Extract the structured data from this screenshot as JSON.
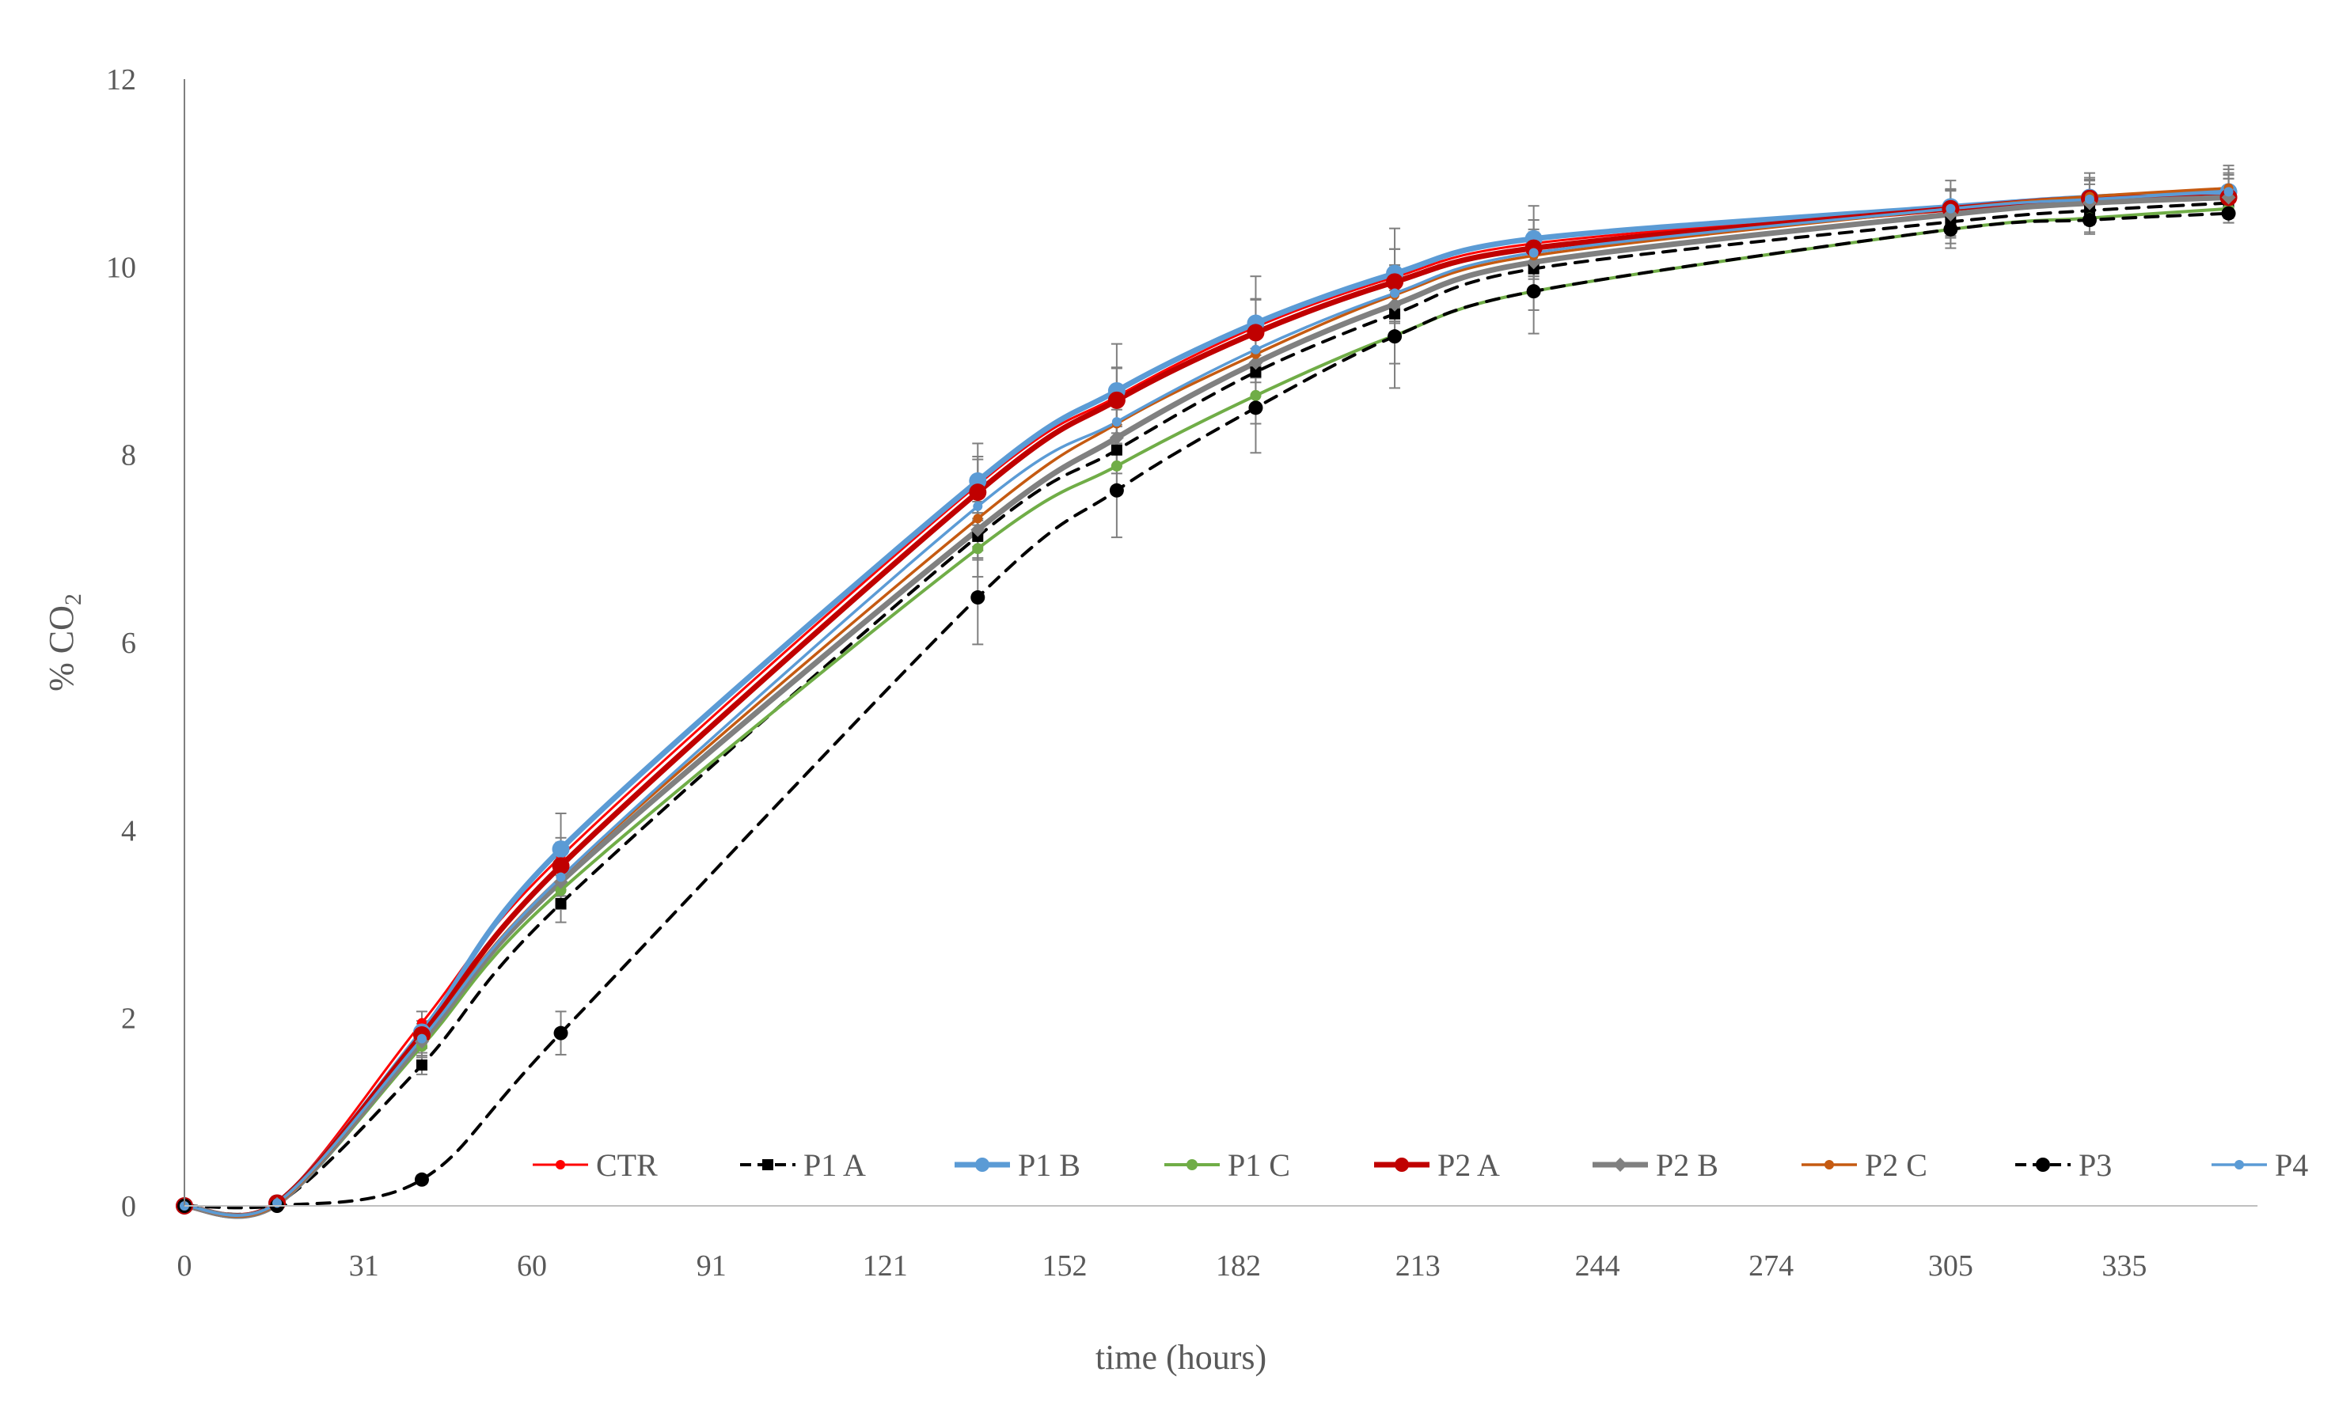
{
  "chart_data": {
    "type": "line",
    "title": "",
    "xlabel": "time (hours)",
    "ylabel_main": "% CO",
    "ylabel_sub": "2",
    "ylim": [
      0,
      12
    ],
    "yticks": [
      0,
      2,
      4,
      6,
      8,
      10,
      12
    ],
    "xlim": [
      0,
      358
    ],
    "xticks": [
      0,
      31,
      60,
      91,
      121,
      152,
      182,
      213,
      244,
      274,
      305,
      335
    ],
    "x": [
      0,
      16,
      41,
      65,
      137,
      161,
      185,
      209,
      233,
      305,
      329,
      353
    ],
    "grid": false,
    "legend_position": "bottom-right",
    "series": [
      {
        "name": "CTR",
        "color": "#ff0000",
        "dash": "solid",
        "width": 3,
        "marker": "circle",
        "marker_r": 6,
        "values": [
          0,
          0.04,
          1.95,
          3.72,
          7.68,
          8.62,
          9.36,
          9.89,
          10.25,
          10.63,
          10.72,
          10.78
        ],
        "err": [
          0,
          0,
          0.12,
          0.2,
          0.3,
          0.3,
          0.3,
          0.3,
          0.25,
          0.2,
          0.2,
          0.2
        ]
      },
      {
        "name": "P1 A",
        "color": "#000000",
        "dash": "dashed",
        "width": 4,
        "marker": "square",
        "marker_r": 7,
        "values": [
          0,
          0.02,
          1.5,
          3.22,
          7.13,
          8.05,
          8.88,
          9.5,
          9.98,
          10.48,
          10.6,
          10.68
        ],
        "err": [
          0,
          0,
          0.1,
          0.2,
          0.25,
          0.25,
          0.25,
          0.25,
          0.2,
          0.15,
          0.15,
          0.15
        ]
      },
      {
        "name": "P1 B",
        "color": "#5b9bd5",
        "dash": "solid",
        "width": 7,
        "marker": "circle",
        "marker_r": 11,
        "values": [
          0,
          0.03,
          1.85,
          3.8,
          7.72,
          8.68,
          9.4,
          9.93,
          10.3,
          10.64,
          10.74,
          10.8
        ],
        "err": [
          0,
          0,
          0.12,
          0.38,
          0.4,
          0.5,
          0.5,
          0.48,
          0.35,
          0.28,
          0.26,
          0.28
        ]
      },
      {
        "name": "P1 C",
        "color": "#70ad47",
        "dash": "solid",
        "width": 4,
        "marker": "circle",
        "marker_r": 7,
        "values": [
          0,
          0.01,
          1.7,
          3.36,
          7.0,
          7.88,
          8.63,
          9.27,
          9.74,
          10.4,
          10.52,
          10.62
        ],
        "err": [
          0,
          0,
          0.12,
          0.2,
          0.3,
          0.3,
          0.3,
          0.3,
          0.2,
          0.15,
          0.15,
          0.15
        ]
      },
      {
        "name": "P2 A",
        "color": "#c00000",
        "dash": "solid",
        "width": 7,
        "marker": "circle",
        "marker_r": 11,
        "values": [
          0,
          0.03,
          1.82,
          3.62,
          7.6,
          8.58,
          9.3,
          9.84,
          10.2,
          10.62,
          10.73,
          10.74
        ],
        "err": [
          0,
          0,
          0.12,
          0.25,
          0.35,
          0.35,
          0.35,
          0.35,
          0.3,
          0.2,
          0.2,
          0.2
        ]
      },
      {
        "name": "P2 B",
        "color": "#808080",
        "dash": "solid",
        "width": 7,
        "marker": "diamond",
        "marker_r": 9,
        "values": [
          0,
          0.02,
          1.75,
          3.45,
          7.2,
          8.18,
          8.98,
          9.6,
          10.05,
          10.56,
          10.68,
          10.74
        ],
        "err": [
          0,
          0,
          0.12,
          0.25,
          0.3,
          0.3,
          0.35,
          0.35,
          0.3,
          0.25,
          0.2,
          0.2
        ]
      },
      {
        "name": "P2 C",
        "color": "#c55a11",
        "dash": "solid",
        "width": 3.5,
        "marker": "circle",
        "marker_r": 6,
        "values": [
          0,
          0.02,
          1.78,
          3.5,
          7.32,
          8.33,
          9.07,
          9.7,
          10.12,
          10.62,
          10.75,
          10.84
        ],
        "err": [
          0,
          0,
          0.1,
          0.2,
          0.3,
          0.3,
          0.3,
          0.3,
          0.25,
          0.2,
          0.2,
          0.2
        ]
      },
      {
        "name": "P3",
        "color": "#000000",
        "dash": "dashed",
        "width": 4,
        "marker": "circle",
        "marker_r": 9,
        "values": [
          0,
          0,
          0.28,
          1.84,
          6.48,
          7.62,
          8.5,
          9.26,
          9.74,
          10.4,
          10.5,
          10.57
        ],
        "err": [
          0,
          0,
          0.03,
          0.23,
          0.5,
          0.5,
          0.48,
          0.55,
          0.45,
          0.2,
          0.15,
          0.1
        ]
      },
      {
        "name": "P4",
        "color": "#5b9bd5",
        "dash": "solid",
        "width": 3.5,
        "marker": "circle",
        "marker_r": 6,
        "values": [
          0,
          0.03,
          1.78,
          3.5,
          7.45,
          8.35,
          9.12,
          9.72,
          10.15,
          10.62,
          10.72,
          10.8
        ],
        "err": [
          0,
          0,
          0.1,
          0.2,
          0.3,
          0.3,
          0.3,
          0.3,
          0.25,
          0.2,
          0.2,
          0.2
        ]
      }
    ]
  }
}
